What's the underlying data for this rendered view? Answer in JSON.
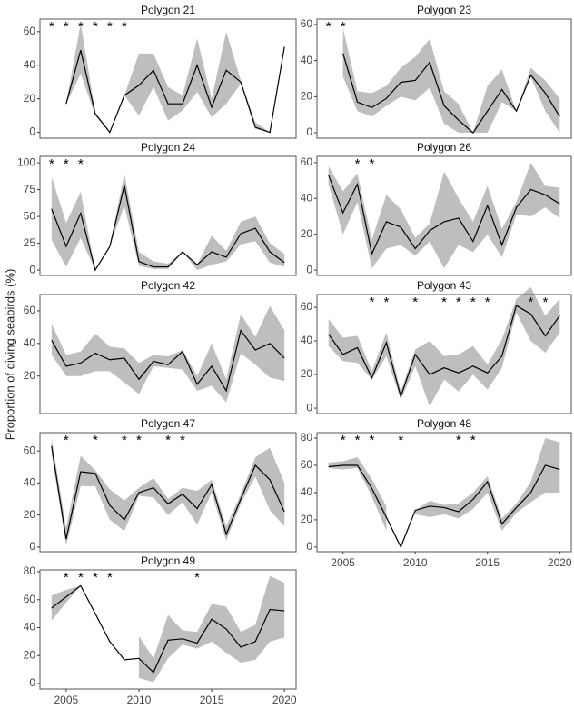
{
  "ylabel": "Proportion of diving seabirds (%)",
  "chart_data": [
    {
      "type": "line",
      "title": "Polygon 21",
      "x": [
        2004,
        2005,
        2006,
        2007,
        2008,
        2009,
        2010,
        2011,
        2012,
        2013,
        2014,
        2015,
        2016,
        2017,
        2018,
        2019,
        2020
      ],
      "values": [
        null,
        17,
        49,
        11,
        0,
        22,
        28,
        37,
        17,
        17,
        40,
        15,
        37,
        30,
        3,
        0,
        51
      ],
      "lower": [
        null,
        17,
        35,
        10,
        0,
        22,
        10,
        27,
        7,
        13,
        24,
        9,
        17,
        29,
        2,
        0,
        51
      ],
      "upper": [
        null,
        17,
        65,
        12,
        0,
        22,
        47,
        47,
        27,
        22,
        56,
        20,
        60,
        31,
        6,
        0,
        51
      ],
      "color": "#000000",
      "band_color": "#bebebe",
      "xlim": [
        2003.2,
        2020.8
      ],
      "ylim": [
        -3.5,
        67.5
      ],
      "yticks": [
        0,
        20,
        40,
        60
      ],
      "annotation_symbol": "*",
      "annotation_x": [
        2004,
        2005,
        2006,
        2007,
        2008,
        2009
      ]
    },
    {
      "type": "line",
      "title": "Polygon 23",
      "x": [
        2004,
        2005,
        2006,
        2007,
        2008,
        2009,
        2010,
        2011,
        2012,
        2013,
        2014,
        2015,
        2016,
        2017,
        2018,
        2019,
        2020
      ],
      "values": [
        null,
        44,
        17,
        14,
        19,
        28,
        29,
        39,
        15,
        7,
        0,
        12,
        24,
        12,
        32,
        22,
        9
      ],
      "lower": [
        null,
        31,
        12,
        9,
        15,
        20,
        18,
        25,
        5,
        0,
        0,
        0,
        17,
        12,
        31,
        12,
        0
      ],
      "upper": [
        null,
        58,
        23,
        22,
        26,
        36,
        42,
        52,
        23,
        16,
        0,
        26,
        35,
        12,
        36,
        29,
        19
      ],
      "color": "#000000",
      "band_color": "#bebebe",
      "xlim": [
        2003.2,
        2020.8
      ],
      "ylim": [
        -3,
        63
      ],
      "yticks": [
        0,
        20,
        40,
        60
      ],
      "annotation_symbol": "*",
      "annotation_x": [
        2004,
        2005
      ]
    },
    {
      "type": "line",
      "title": "Polygon 24",
      "x": [
        2004,
        2005,
        2006,
        2007,
        2008,
        2009,
        2010,
        2011,
        2012,
        2013,
        2014,
        2015,
        2016,
        2017,
        2018,
        2019,
        2020
      ],
      "values": [
        57,
        22,
        53,
        0,
        22,
        79,
        8,
        3,
        3,
        17,
        5,
        17,
        12,
        34,
        39,
        17,
        7
      ],
      "lower": [
        28,
        3,
        30,
        0,
        22,
        60,
        4,
        1,
        1,
        17,
        0,
        5,
        8,
        24,
        27,
        7,
        3
      ],
      "upper": [
        87,
        44,
        73,
        0,
        22,
        90,
        17,
        8,
        6,
        17,
        5,
        32,
        18,
        45,
        50,
        25,
        15
      ],
      "color": "#000000",
      "band_color": "#bebebe",
      "xlim": [
        2003.2,
        2020.8
      ],
      "ylim": [
        -5,
        106
      ],
      "yticks": [
        0,
        25,
        50,
        75,
        100
      ],
      "annotation_symbol": "*",
      "annotation_x": [
        2004,
        2005,
        2006
      ]
    },
    {
      "type": "line",
      "title": "Polygon 26",
      "x": [
        2004,
        2005,
        2006,
        2007,
        2008,
        2009,
        2010,
        2011,
        2012,
        2013,
        2014,
        2015,
        2016,
        2017,
        2018,
        2019,
        2020
      ],
      "values": [
        53,
        32,
        48,
        9,
        27,
        24,
        12,
        22,
        27,
        29,
        16,
        36,
        14,
        35,
        45,
        42,
        37
      ],
      "lower": [
        48,
        20,
        38,
        1,
        12,
        14,
        8,
        16,
        1,
        14,
        10,
        20,
        7,
        31,
        30,
        35,
        29
      ],
      "upper": [
        58,
        44,
        54,
        17,
        42,
        34,
        18,
        26,
        55,
        40,
        27,
        47,
        23,
        38,
        60,
        47,
        46
      ],
      "color": "#000000",
      "band_color": "#bebebe",
      "xlim": [
        2003.2,
        2020.8
      ],
      "ylim": [
        -3,
        63.5
      ],
      "yticks": [
        0,
        20,
        40,
        60
      ],
      "annotation_symbol": "*",
      "annotation_x": [
        2006,
        2007
      ]
    },
    {
      "type": "line",
      "title": "Polygon 42",
      "x": [
        2004,
        2005,
        2006,
        2007,
        2008,
        2009,
        2010,
        2011,
        2012,
        2013,
        2014,
        2015,
        2016,
        2017,
        2018,
        2019,
        2020
      ],
      "values": [
        42,
        26,
        28,
        34,
        30,
        31,
        18,
        29,
        27,
        35,
        15,
        26,
        11,
        48,
        36,
        40,
        31
      ],
      "lower": [
        33,
        20,
        20,
        23,
        23,
        16,
        9,
        26,
        25,
        24,
        11,
        14,
        4,
        34,
        27,
        19,
        17
      ],
      "upper": [
        52,
        33,
        35,
        46,
        38,
        37,
        28,
        33,
        32,
        36,
        20,
        40,
        18,
        58,
        44,
        63,
        48
      ],
      "color": "#000000",
      "band_color": "#bebebe",
      "xlim": [
        2003.2,
        2020.8
      ],
      "ylim": [
        -3,
        70
      ],
      "yticks": [
        20,
        40,
        60
      ]
    },
    {
      "type": "line",
      "title": "Polygon 43",
      "x": [
        2004,
        2005,
        2006,
        2007,
        2008,
        2009,
        2010,
        2011,
        2012,
        2013,
        2014,
        2015,
        2016,
        2017,
        2018,
        2019,
        2020
      ],
      "values": [
        44,
        32,
        36,
        18,
        39,
        7,
        32,
        20,
        24,
        21,
        25,
        21,
        31,
        61,
        56,
        43,
        55
      ],
      "lower": [
        37,
        28,
        27,
        17,
        31,
        5,
        25,
        1,
        17,
        10,
        20,
        11,
        24,
        57,
        40,
        33,
        45
      ],
      "upper": [
        53,
        42,
        43,
        22,
        45,
        10,
        35,
        40,
        31,
        32,
        37,
        26,
        41,
        65,
        72,
        55,
        65
      ],
      "color": "#000000",
      "band_color": "#bebebe",
      "xlim": [
        2003.2,
        2020.8
      ],
      "ylim": [
        -3.2,
        67.6
      ],
      "yticks": [
        0,
        20,
        40,
        60
      ],
      "annotation_symbol": "*",
      "annotation_x": [
        2007,
        2008,
        2010,
        2012,
        2013,
        2014,
        2015,
        2018,
        2019
      ]
    },
    {
      "type": "line",
      "title": "Polygon 47",
      "x": [
        2004,
        2005,
        2006,
        2007,
        2008,
        2009,
        2010,
        2011,
        2012,
        2013,
        2014,
        2015,
        2016,
        2017,
        2018,
        2019,
        2020
      ],
      "values": [
        63,
        5,
        47,
        46,
        26,
        17,
        34,
        37,
        27,
        33,
        24,
        39,
        8,
        30,
        51,
        42,
        22
      ],
      "lower": [
        58,
        1,
        38,
        38,
        17,
        10,
        32,
        31,
        20,
        28,
        14,
        34,
        4,
        27,
        44,
        23,
        13
      ],
      "upper": [
        68,
        12,
        57,
        48,
        36,
        29,
        37,
        43,
        30,
        37,
        35,
        42,
        13,
        33,
        56,
        62,
        40
      ],
      "color": "#000000",
      "band_color": "#bebebe",
      "xlim": [
        2003.2,
        2020.8
      ],
      "ylim": [
        -2.9,
        71.4
      ],
      "yticks": [
        0,
        20,
        40,
        60
      ],
      "annotation_symbol": "*",
      "annotation_x": [
        2005,
        2007,
        2009,
        2010,
        2012,
        2013
      ]
    },
    {
      "type": "line",
      "title": "Polygon 48",
      "x": [
        2004,
        2005,
        2006,
        2007,
        2008,
        2009,
        2010,
        2011,
        2012,
        2013,
        2014,
        2015,
        2016,
        2017,
        2018,
        2019,
        2020
      ],
      "values": [
        59,
        60,
        60,
        43,
        22,
        0,
        27,
        30,
        29,
        26,
        35,
        48,
        17,
        29,
        40,
        60,
        57
      ],
      "lower": [
        58,
        57,
        58,
        37,
        12,
        null,
        24,
        22,
        24,
        21,
        28,
        40,
        12,
        25,
        33,
        40,
        40
      ],
      "upper": [
        62,
        63,
        66,
        50,
        30,
        null,
        27,
        34,
        31,
        32,
        40,
        52,
        21,
        32,
        48,
        80,
        77
      ],
      "color": "#000000",
      "band_color": "#bebebe",
      "xlim": [
        2003.2,
        2020.8
      ],
      "ylim": [
        -3.4,
        84
      ],
      "yticks": [
        0,
        20,
        40,
        60,
        80
      ],
      "xticks": [
        2005,
        2010,
        2015,
        2020
      ],
      "annotation_symbol": "*",
      "annotation_x": [
        2005,
        2006,
        2007,
        2009,
        2013,
        2014
      ]
    },
    {
      "type": "line",
      "title": "Polygon 49",
      "x": [
        2004,
        2005,
        2006,
        2007,
        2008,
        2009,
        2010,
        2011,
        2012,
        2013,
        2014,
        2015,
        2016,
        2017,
        2018,
        2019,
        2020
      ],
      "values": [
        54,
        62,
        70,
        50,
        30,
        17,
        18,
        8,
        31,
        32,
        29,
        46,
        39,
        26,
        30,
        53,
        52
      ],
      "lower": [
        45,
        58,
        70,
        null,
        null,
        null,
        4,
        1,
        18,
        28,
        25,
        30,
        22,
        15,
        17,
        30,
        33
      ],
      "upper": [
        63,
        67,
        70,
        null,
        null,
        null,
        34,
        18,
        49,
        38,
        37,
        57,
        55,
        37,
        42,
        77,
        72
      ],
      "color": "#000000",
      "band_color": "#bebebe",
      "xlim": [
        2003.2,
        2020.8
      ],
      "ylim": [
        -3.9,
        81.3
      ],
      "yticks": [
        0,
        20,
        40,
        60,
        80
      ],
      "xticks": [
        2005,
        2010,
        2015,
        2020
      ],
      "annotation_symbol": "*",
      "annotation_x": [
        2005,
        2006,
        2007,
        2008,
        2014
      ]
    }
  ]
}
